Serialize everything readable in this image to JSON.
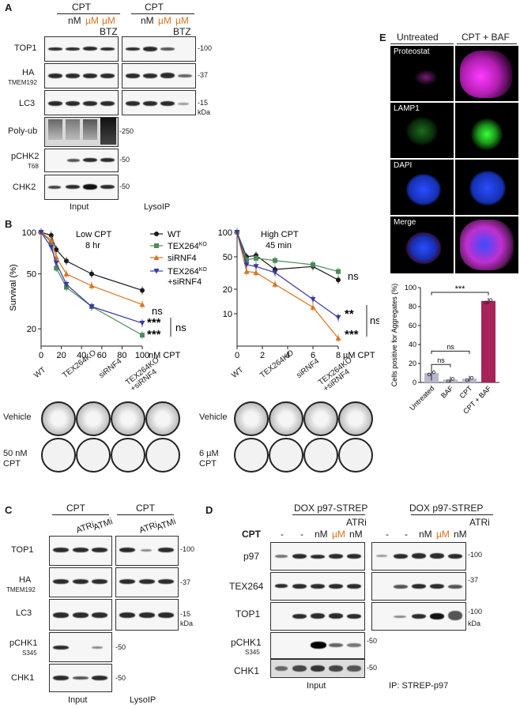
{
  "panelA": {
    "letter": "A",
    "cpt1": "CPT",
    "cpt2": "CPT",
    "nM": "nM",
    "uM1": "µM",
    "uM2": "µM",
    "nM_b": "nM",
    "uM1_b": "µM",
    "uM2_b": "µM",
    "btz": "BTZ",
    "btz_b": "BTZ",
    "rows": [
      {
        "label": "TOP1",
        "sub": "",
        "mw": "-100"
      },
      {
        "label": "HA",
        "sub": "TMEM192",
        "mw": "-37"
      },
      {
        "label": "LC3",
        "sub": "",
        "mw": "-15"
      },
      {
        "label": "Poly-ub",
        "sub": "",
        "mw": "-250"
      },
      {
        "label": "pCHK2",
        "sub": "T68",
        "mw": "-50"
      },
      {
        "label": "CHK2",
        "sub": "",
        "mw": "-50"
      }
    ],
    "kda": "kDa",
    "input": "Input",
    "lysoip": "LysoIP"
  },
  "panelB": {
    "letter": "B",
    "chart_data": [
      {
        "type": "line",
        "title": "Low CPT",
        "subtitle": "8 hr",
        "ylabel": "Survival (%)",
        "xlabel": "nM CPT",
        "x": [
          0,
          10,
          15,
          25,
          50,
          100
        ],
        "xticks": [
          "0",
          "20",
          "40",
          "60",
          "80",
          "100"
        ],
        "yticks": [
          "100",
          "50",
          "20"
        ],
        "ylim": [
          15,
          100
        ],
        "yscale": "log",
        "series": [
          {
            "name": "WT",
            "color": "#1a1a1a",
            "marker": "circle",
            "values": [
              100,
              95,
              75,
              62,
              50,
              38
            ]
          },
          {
            "name": "TEX264KO",
            "color": "#4f8a5b",
            "marker": "square",
            "values": [
              100,
              85,
              55,
              40,
              29,
              18
            ]
          },
          {
            "name": "siRNF4",
            "color": "#d9731f",
            "marker": "triangle",
            "values": [
              100,
              88,
              66,
              50,
              41,
              30
            ]
          },
          {
            "name": "TEX264KO +siRNF4",
            "color": "#3a3aa0",
            "marker": "triangle-down",
            "values": [
              100,
              78,
              60,
              42,
              29,
              22
            ]
          }
        ],
        "annotations": [
          "ns",
          "***",
          "***",
          "ns"
        ]
      },
      {
        "type": "line",
        "title": "High CPT",
        "subtitle": "45 min",
        "xlabel": "µM CPT",
        "x": [
          0,
          0.75,
          1.5,
          3,
          6,
          8
        ],
        "xticks": [
          "0",
          "2",
          "4",
          "6",
          "8"
        ],
        "yticks": [
          "100",
          "50",
          "20",
          "10"
        ],
        "ylim": [
          4,
          100
        ],
        "yscale": "log",
        "series": [
          {
            "name": "WT",
            "color": "#1a1a1a",
            "marker": "circle",
            "values": [
              100,
              50,
              52,
              35,
              38,
              26
            ]
          },
          {
            "name": "TEX264KO",
            "color": "#4f8a5b",
            "marker": "square",
            "values": [
              100,
              46,
              48,
              45,
              40,
              33
            ]
          },
          {
            "name": "siRNF4",
            "color": "#d9731f",
            "marker": "triangle",
            "values": [
              100,
              33,
              32,
              23,
              12,
              5
            ]
          },
          {
            "name": "TEX264KO +siRNF4",
            "color": "#3a3aa0",
            "marker": "triangle-down",
            "values": [
              100,
              40,
              38,
              32,
              15,
              9
            ]
          }
        ],
        "annotations": [
          "ns",
          "**",
          "ns",
          "***"
        ]
      }
    ],
    "legend": [
      {
        "name": "WT",
        "color": "#1a1a1a"
      },
      {
        "name": "TEX264",
        "sup": "KO",
        "color": "#4f8a5b"
      },
      {
        "name": "siRNF4",
        "color": "#d9731f"
      },
      {
        "name": "TEX264",
        "sup": "KO",
        "extra": "+siRNF4",
        "color": "#3a3aa0"
      }
    ],
    "dish_headers": [
      "WT",
      "TEX264KO",
      "siRNF4",
      "TEX264KO +siRNF4"
    ],
    "dish_rows_left": [
      "Vehicle",
      "50 nM CPT"
    ],
    "dish_rows_right": [
      "Vehicle",
      "6 µM CPT"
    ]
  },
  "panelC": {
    "letter": "C",
    "cpt1": "CPT",
    "cpt2": "CPT",
    "atri": "ATRi",
    "atmi": "ATMi",
    "atri_b": "ATRi",
    "atmi_b": "ATMi",
    "rows": [
      {
        "label": "TOP1",
        "sub": "",
        "mw": "-100"
      },
      {
        "label": "HA",
        "sub": "TMEM192",
        "mw": "-37"
      },
      {
        "label": "LC3",
        "sub": "",
        "mw": "-15"
      },
      {
        "label": "pCHK1",
        "sub": "S345",
        "mw": "-50"
      },
      {
        "label": "CHK1",
        "sub": "",
        "mw": "-50"
      }
    ],
    "kda": "kDa",
    "input": "Input",
    "lysoip": "LysoIP"
  },
  "panelD": {
    "letter": "D",
    "dox1": "DOX p97-STREP",
    "dox2": "DOX p97-STREP",
    "cpt": "CPT",
    "lanes_left": [
      "-",
      "-",
      "nM",
      "µM",
      "nM"
    ],
    "lanes_right": [
      "-",
      "-",
      "nM",
      "µM",
      "nM"
    ],
    "atri": "ATRi",
    "atri_b": "ATRi",
    "rows": [
      {
        "label": "p97",
        "sub": "",
        "mw": "-100"
      },
      {
        "label": "TEX264",
        "sub": "",
        "mw": "-37"
      },
      {
        "label": "TOP1",
        "sub": "",
        "mw": "-100"
      },
      {
        "label": "pCHK1",
        "sub": "S345",
        "mw": "-50"
      },
      {
        "label": "CHK1",
        "sub": "",
        "mw": "-50"
      }
    ],
    "kda": "kDa",
    "input": "Input",
    "ip": "IP: STREP-p97"
  },
  "panelE": {
    "letter": "E",
    "col1": "Untreated",
    "col2": "CPT + BAF",
    "rows": [
      "Proteostat",
      "LAMP1",
      "DAPI",
      "Merge"
    ],
    "chart_data": {
      "type": "bar",
      "ylabel": "Cells positive for Aggregates (%)",
      "categories": [
        "Untreated",
        "BAF",
        "CPT",
        "CPT + BAF"
      ],
      "values": [
        10,
        3,
        4,
        86
      ],
      "errors": [
        8,
        3,
        3,
        3
      ],
      "colors": [
        "#b7b7cf",
        "#b7b7cf",
        "#b7b7cf",
        "#a8235a"
      ],
      "ylim": [
        0,
        100
      ],
      "yticks": [
        "0",
        "20",
        "40",
        "60",
        "80",
        "100"
      ],
      "annotations": [
        "***",
        "ns",
        "ns"
      ]
    }
  }
}
